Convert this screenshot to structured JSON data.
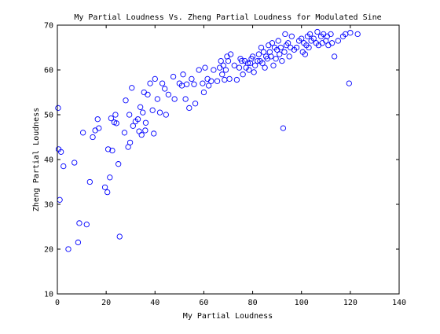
{
  "chart_data": {
    "type": "scatter",
    "title": "My Partial Loudness Vs. Zheng Partial Loudness for Modulated Sine",
    "xlabel": "My Partial Loudness",
    "ylabel": "Zheng Partial Loudness",
    "xlim": [
      0,
      140
    ],
    "ylim": [
      10,
      70
    ],
    "xticks": [
      0,
      20,
      40,
      60,
      80,
      100,
      120,
      140
    ],
    "yticks": [
      10,
      20,
      30,
      40,
      50,
      60,
      70
    ],
    "grid": false,
    "series": [
      {
        "marker": "circle",
        "color": "#0000ff",
        "points": [
          [
            0.3,
            51.5
          ],
          [
            0.5,
            42.3
          ],
          [
            1.0,
            31.0
          ],
          [
            1.5,
            41.7
          ],
          [
            2.5,
            38.5
          ],
          [
            4.5,
            20.0
          ],
          [
            7.0,
            39.3
          ],
          [
            8.5,
            21.5
          ],
          [
            9.0,
            25.8
          ],
          [
            10.5,
            46.0
          ],
          [
            12.0,
            25.5
          ],
          [
            13.3,
            35.0
          ],
          [
            14.5,
            45.0
          ],
          [
            15.5,
            46.5
          ],
          [
            16.5,
            49.0
          ],
          [
            17.0,
            47.0
          ],
          [
            19.5,
            33.8
          ],
          [
            20.5,
            32.7
          ],
          [
            20.8,
            42.3
          ],
          [
            21.5,
            36.0
          ],
          [
            22.0,
            49.2
          ],
          [
            22.5,
            42.0
          ],
          [
            23.3,
            48.3
          ],
          [
            23.8,
            50.0
          ],
          [
            24.2,
            48.1
          ],
          [
            25.0,
            39.0
          ],
          [
            25.5,
            22.8
          ],
          [
            27.5,
            46.0
          ],
          [
            28.0,
            53.2
          ],
          [
            29.0,
            42.8
          ],
          [
            29.8,
            43.8
          ],
          [
            29.5,
            50.0
          ],
          [
            30.5,
            56.0
          ],
          [
            31.0,
            47.5
          ],
          [
            32.0,
            48.5
          ],
          [
            33.0,
            49.0
          ],
          [
            33.5,
            46.3
          ],
          [
            34.0,
            51.7
          ],
          [
            34.5,
            45.5
          ],
          [
            35.0,
            50.5
          ],
          [
            35.5,
            55.0
          ],
          [
            36.0,
            46.5
          ],
          [
            36.2,
            48.2
          ],
          [
            37.0,
            54.5
          ],
          [
            38.0,
            57.0
          ],
          [
            39.0,
            51.0
          ],
          [
            39.5,
            45.8
          ],
          [
            40.0,
            58.0
          ],
          [
            41.0,
            53.5
          ],
          [
            42.0,
            50.5
          ],
          [
            43.0,
            57.0
          ],
          [
            44.0,
            55.8
          ],
          [
            44.5,
            50.0
          ],
          [
            45.5,
            54.5
          ],
          [
            47.5,
            58.5
          ],
          [
            48.0,
            53.5
          ],
          [
            50.0,
            57.0
          ],
          [
            51.0,
            56.5
          ],
          [
            51.5,
            59.0
          ],
          [
            52.5,
            53.5
          ],
          [
            53.0,
            56.8
          ],
          [
            54.0,
            51.5
          ],
          [
            55.0,
            58.0
          ],
          [
            56.0,
            56.8
          ],
          [
            56.5,
            52.5
          ],
          [
            58.0,
            60.0
          ],
          [
            59.5,
            57.0
          ],
          [
            60.0,
            55.0
          ],
          [
            60.5,
            60.5
          ],
          [
            61.5,
            58.0
          ],
          [
            62.0,
            56.5
          ],
          [
            63.0,
            57.5
          ],
          [
            64.0,
            60.0
          ],
          [
            65.5,
            57.5
          ],
          [
            66.5,
            60.5
          ],
          [
            67.0,
            62.0
          ],
          [
            67.5,
            59.0
          ],
          [
            68.0,
            61.0
          ],
          [
            68.5,
            57.8
          ],
          [
            69.0,
            60.0
          ],
          [
            69.5,
            63.0
          ],
          [
            70.0,
            62.0
          ],
          [
            70.5,
            58.0
          ],
          [
            71.0,
            63.5
          ],
          [
            72.5,
            61.0
          ],
          [
            73.5,
            57.8
          ],
          [
            74.5,
            60.5
          ],
          [
            75.0,
            62.5
          ],
          [
            75.5,
            62.0
          ],
          [
            76.0,
            59.0
          ],
          [
            76.8,
            62.0
          ],
          [
            77.3,
            60.5
          ],
          [
            78.0,
            61.5
          ],
          [
            78.5,
            60.0
          ],
          [
            79.0,
            61.5
          ],
          [
            79.5,
            62.5
          ],
          [
            80.0,
            63.0
          ],
          [
            80.5,
            59.5
          ],
          [
            81.0,
            61.0
          ],
          [
            82.0,
            62.0
          ],
          [
            82.5,
            63.5
          ],
          [
            83.0,
            62.0
          ],
          [
            83.5,
            65.0
          ],
          [
            84.0,
            61.5
          ],
          [
            84.5,
            64.0
          ],
          [
            85.0,
            60.5
          ],
          [
            85.5,
            63.0
          ],
          [
            86.0,
            62.5
          ],
          [
            86.5,
            65.5
          ],
          [
            87.0,
            64.0
          ],
          [
            87.5,
            63.0
          ],
          [
            88.0,
            66.0
          ],
          [
            88.5,
            61.0
          ],
          [
            89.0,
            65.0
          ],
          [
            89.5,
            62.5
          ],
          [
            90.0,
            64.5
          ],
          [
            90.5,
            66.5
          ],
          [
            91.0,
            63.5
          ],
          [
            91.5,
            65.0
          ],
          [
            92.0,
            62.0
          ],
          [
            92.5,
            47.0
          ],
          [
            93.0,
            64.0
          ],
          [
            93.3,
            68.0
          ],
          [
            93.8,
            65.5
          ],
          [
            94.5,
            66.0
          ],
          [
            95.0,
            63.0
          ],
          [
            95.5,
            65.0
          ],
          [
            96.0,
            67.5
          ],
          [
            97.0,
            64.5
          ],
          [
            98.0,
            65.0
          ],
          [
            99.0,
            66.5
          ],
          [
            100.0,
            67.0
          ],
          [
            100.5,
            64.0
          ],
          [
            101.0,
            66.0
          ],
          [
            101.5,
            63.5
          ],
          [
            102.0,
            65.5
          ],
          [
            102.5,
            67.5
          ],
          [
            103.0,
            65.0
          ],
          [
            103.5,
            68.0
          ],
          [
            104.0,
            66.5
          ],
          [
            105.0,
            67.0
          ],
          [
            106.0,
            66.0
          ],
          [
            106.5,
            68.5
          ],
          [
            107.0,
            65.5
          ],
          [
            108.0,
            67.5
          ],
          [
            108.5,
            66.0
          ],
          [
            109.0,
            68.0
          ],
          [
            110.0,
            66.5
          ],
          [
            110.5,
            67.5
          ],
          [
            111.0,
            65.5
          ],
          [
            112.0,
            68.0
          ],
          [
            112.5,
            66.0
          ],
          [
            113.5,
            63.0
          ],
          [
            115.0,
            66.5
          ],
          [
            117.0,
            67.5
          ],
          [
            118.0,
            68.0
          ],
          [
            119.5,
            57.0
          ],
          [
            120.0,
            68.3
          ],
          [
            123.0,
            68.0
          ]
        ]
      }
    ]
  }
}
